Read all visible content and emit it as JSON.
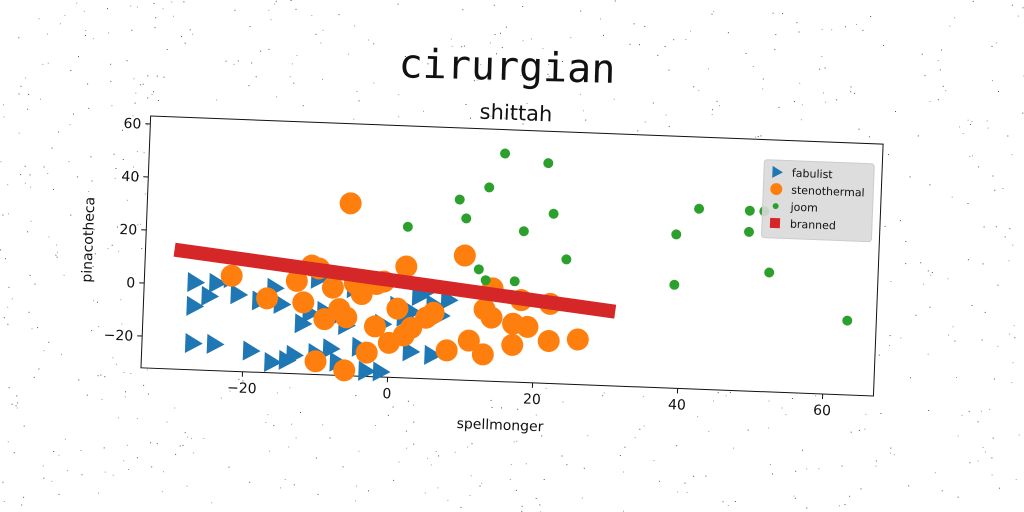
{
  "figure": {
    "suptitle": "cirurgian"
  },
  "chart_data": {
    "type": "scatter",
    "title": "shittah",
    "xlabel": "spellmonger",
    "ylabel": "pinacotheca",
    "xlim": [
      -34,
      67
    ],
    "ylim": [
      -32,
      63
    ],
    "xticks": [
      -20,
      0,
      20,
      40,
      60
    ],
    "yticks": [
      -20,
      0,
      20,
      40,
      60
    ],
    "grid": false,
    "legend_position": "top-right",
    "series": [
      {
        "name": "fabulist",
        "marker": "triangle-right",
        "color": "#1f77b4",
        "points": [
          [
            -27,
            1
          ],
          [
            -24,
            1
          ],
          [
            -27,
            -8
          ],
          [
            -25,
            -4
          ],
          [
            -21,
            -3
          ],
          [
            -22,
            3
          ],
          [
            -16,
            0
          ],
          [
            -13,
            4
          ],
          [
            -10,
            4
          ],
          [
            -5,
            1
          ],
          [
            -18,
            -5
          ],
          [
            -15,
            -6
          ],
          [
            -11,
            -9
          ],
          [
            -12,
            -13
          ],
          [
            -8,
            -11
          ],
          [
            -6,
            -13
          ],
          [
            -1,
            -12
          ],
          [
            1,
            -5
          ],
          [
            3,
            -7
          ],
          [
            4,
            -1
          ],
          [
            5,
            1
          ],
          [
            7,
            -8
          ],
          [
            6,
            -4
          ],
          [
            8,
            -2
          ],
          [
            -27,
            -22
          ],
          [
            -24,
            -22
          ],
          [
            -19,
            -24
          ],
          [
            -13,
            -25
          ],
          [
            -10,
            -24
          ],
          [
            -8,
            -22
          ],
          [
            -4,
            -21
          ],
          [
            -16,
            -28
          ],
          [
            -14,
            -27
          ],
          [
            -7,
            -27
          ],
          [
            -3,
            -30
          ],
          [
            -1,
            -30
          ],
          [
            3,
            -22
          ],
          [
            6,
            -23
          ],
          [
            2,
            -9
          ],
          [
            -9,
            -8
          ]
        ]
      },
      {
        "name": "stenothermal",
        "marker": "circle",
        "color": "#ff7f0e",
        "points": [
          [
            -6,
            33
          ],
          [
            10,
            15
          ],
          [
            2,
            10
          ],
          [
            -11,
            9
          ],
          [
            -10,
            8
          ],
          [
            -22,
            4
          ],
          [
            -5,
            3
          ],
          [
            -2,
            3
          ],
          [
            -1,
            4
          ],
          [
            -13,
            3
          ],
          [
            -8,
            1
          ],
          [
            -17,
            -4
          ],
          [
            -12,
            -5
          ],
          [
            -7,
            -7
          ],
          [
            -6,
            -10
          ],
          [
            -2,
            -13
          ],
          [
            1,
            -6
          ],
          [
            3,
            -13
          ],
          [
            5,
            -9
          ],
          [
            6,
            -7
          ],
          [
            13,
            -5
          ],
          [
            14,
            -8
          ],
          [
            17,
            -10
          ],
          [
            19,
            -11
          ],
          [
            22,
            -16
          ],
          [
            26,
            -15
          ],
          [
            17,
            -18
          ],
          [
            11,
            -17
          ],
          [
            8,
            -21
          ],
          [
            13,
            -22
          ],
          [
            -3,
            -23
          ],
          [
            -10,
            -27
          ],
          [
            -6,
            -30
          ],
          [
            0,
            -19
          ],
          [
            2,
            -16
          ],
          [
            22,
            -2
          ],
          [
            18,
            -1
          ],
          [
            14,
            3
          ],
          [
            -4,
            -1
          ],
          [
            -9,
            -11
          ]
        ]
      },
      {
        "name": "joom",
        "marker": "dot",
        "color": "#2ca02c",
        "points": [
          [
            15,
            54
          ],
          [
            21,
            51
          ],
          [
            13,
            41
          ],
          [
            9,
            36
          ],
          [
            10,
            29
          ],
          [
            22,
            32
          ],
          [
            2,
            25
          ],
          [
            18,
            25
          ],
          [
            39,
            26
          ],
          [
            42,
            36
          ],
          [
            49,
            36
          ],
          [
            51,
            36
          ],
          [
            49,
            28
          ],
          [
            24,
            15
          ],
          [
            12,
            10
          ],
          [
            13,
            6
          ],
          [
            17,
            6
          ],
          [
            39,
            7
          ],
          [
            52,
            13
          ],
          [
            63,
            -4
          ]
        ]
      },
      {
        "name": "branned",
        "marker": "line",
        "color": "#d62728",
        "points": [
          [
            -30,
            13
          ],
          [
            31,
            -4
          ]
        ]
      }
    ]
  }
}
